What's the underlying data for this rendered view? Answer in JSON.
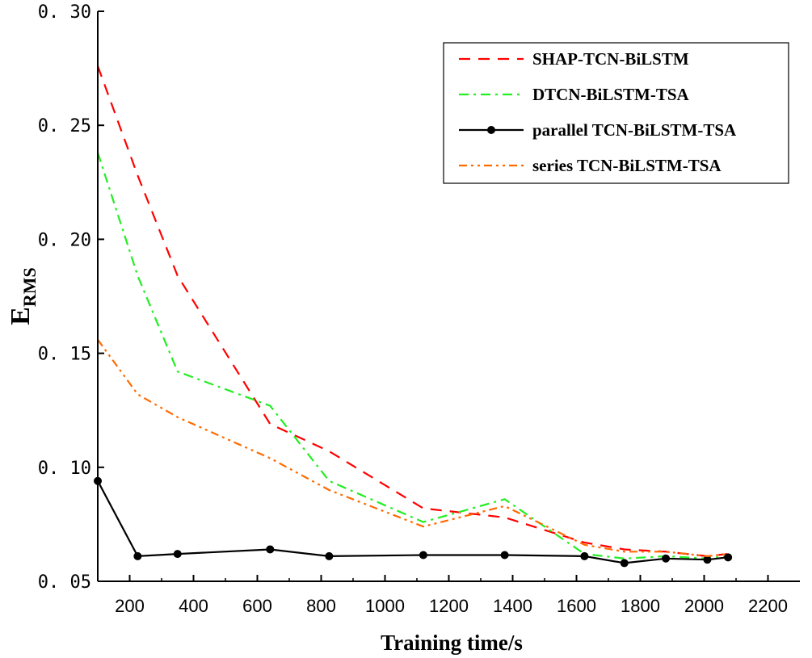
{
  "chart_data": {
    "type": "line",
    "title": "",
    "xlabel": "Training time/s",
    "ylabel": {
      "main": "E",
      "subscript": "RMS"
    },
    "xlim": [
      100,
      2300
    ],
    "ylim": [
      0.05,
      0.3
    ],
    "xticks": [
      200,
      400,
      600,
      800,
      1000,
      1200,
      1400,
      1600,
      1800,
      2000,
      2200
    ],
    "yticks": [
      0.05,
      0.1,
      0.15,
      0.2,
      0.25,
      0.3
    ],
    "ytick_labels": [
      "0. 05",
      "0. 10",
      "0. 15",
      "0. 20",
      "0. 25",
      "0. 30"
    ],
    "grid": false,
    "legend_position": "top-right",
    "series": [
      {
        "name": "SHAP-TCN-BiLSTM",
        "color": "#ff0000",
        "style": "dashed",
        "markers": false,
        "x": [
          100,
          225,
          350,
          640,
          825,
          1120,
          1375,
          1625,
          1750,
          1880,
          2010,
          2075
        ],
        "y": [
          0.276,
          0.228,
          0.184,
          0.119,
          0.107,
          0.082,
          0.078,
          0.067,
          0.064,
          0.063,
          0.061,
          0.062
        ]
      },
      {
        "name": "DTCN-BiLSTM-TSA",
        "color": "#22ee22",
        "style": "dashdot",
        "markers": false,
        "x": [
          100,
          225,
          350,
          640,
          825,
          1120,
          1375,
          1625,
          1750,
          1880,
          2010,
          2075
        ],
        "y": [
          0.238,
          0.184,
          0.142,
          0.127,
          0.094,
          0.076,
          0.086,
          0.062,
          0.06,
          0.061,
          0.06,
          0.061
        ]
      },
      {
        "name": "parallel TCN-BiLSTM-TSA",
        "color": "#000000",
        "style": "solid",
        "markers": true,
        "x": [
          100,
          225,
          350,
          640,
          825,
          1120,
          1375,
          1625,
          1750,
          1880,
          2010,
          2075
        ],
        "y": [
          0.094,
          0.061,
          0.062,
          0.064,
          0.061,
          0.0615,
          0.0615,
          0.061,
          0.058,
          0.06,
          0.0595,
          0.0605
        ]
      },
      {
        "name": "series TCN-BiLSTM-TSA",
        "color": "#ff6a00",
        "style": "dashdotdot",
        "markers": false,
        "x": [
          100,
          225,
          350,
          640,
          825,
          1120,
          1375,
          1625,
          1750,
          1880,
          2010,
          2075
        ],
        "y": [
          0.156,
          0.132,
          0.122,
          0.104,
          0.09,
          0.074,
          0.083,
          0.066,
          0.063,
          0.063,
          0.061,
          0.062
        ]
      }
    ]
  }
}
